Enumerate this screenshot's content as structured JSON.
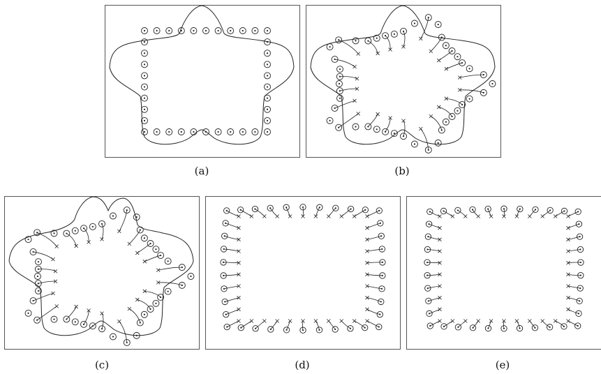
{
  "figure": {
    "panels": [
      {
        "id": "a",
        "caption": "(a)"
      },
      {
        "id": "b",
        "caption": "(b)"
      },
      {
        "id": "c",
        "caption": "(c)"
      },
      {
        "id": "d",
        "caption": "(d)"
      },
      {
        "id": "e",
        "caption": "(e)"
      }
    ]
  },
  "colors": {
    "ink": "#222222",
    "frame": "#555555",
    "background": "#ffffff"
  }
}
